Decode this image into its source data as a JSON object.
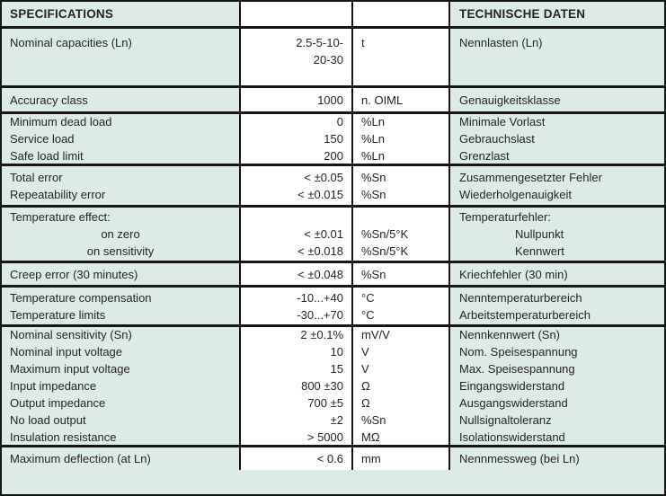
{
  "colors": {
    "row_tint": "#dcebe4",
    "cell_white": "#ffffff",
    "border": "#161616",
    "text": "#242424"
  },
  "table": {
    "header": {
      "left": "SPECIFICATIONS",
      "right": "TECHNISCHE DATEN"
    },
    "sections": [
      {
        "rows": [
          {
            "en": "Nominal capacities (Ln)",
            "value": "2.5-5-10-",
            "unit": "t",
            "de": "Nennlasten (Ln)"
          },
          {
            "en": "",
            "value": "20-30",
            "unit": "",
            "de": ""
          }
        ]
      },
      {
        "rows": [
          {
            "en": "Accuracy class",
            "value": "1000",
            "unit": "n. OIML",
            "de": "Genauigkeitsklasse"
          }
        ]
      },
      {
        "rows": [
          {
            "en": "Minimum dead load",
            "value": "0",
            "unit": "%Ln",
            "de": "Minimale Vorlast"
          },
          {
            "en": "Service load",
            "value": "150",
            "unit": "%Ln",
            "de": "Gebrauchslast"
          },
          {
            "en": "Safe load limit",
            "value": "200",
            "unit": "%Ln",
            "de": "Grenzlast"
          }
        ]
      },
      {
        "rows": [
          {
            "en": "Total error",
            "value": "< ±0.05",
            "unit": "%Sn",
            "de": "Zusammengesetzter Fehler"
          },
          {
            "en": "Repeatability error",
            "value": "< ±0.015",
            "unit": "%Sn",
            "de": "Wiederholgenauigkeit"
          }
        ]
      },
      {
        "rows": [
          {
            "en": "Temperature effect:",
            "value": "",
            "unit": "",
            "de": "Temperaturfehler:"
          },
          {
            "en": "on zero",
            "en_sub": true,
            "value": "< ±0.01",
            "unit": "%Sn/5°K",
            "de": "Nullpunkt",
            "de_sub": true
          },
          {
            "en": "on sensitivity",
            "en_sub": true,
            "value": "< ±0.018",
            "unit": "%Sn/5°K",
            "de": "Kennwert",
            "de_sub": true
          }
        ]
      },
      {
        "rows": [
          {
            "en": "Creep error (30 minutes)",
            "value": "< ±0.048",
            "unit": "%Sn",
            "de": "Kriechfehler (30 min)"
          }
        ]
      },
      {
        "rows": [
          {
            "en": "Temperature compensation",
            "value": "-10...+40",
            "unit": "°C",
            "de": "Nenntemperaturbereich"
          },
          {
            "en": "Temperature limits",
            "value": "-30...+70",
            "unit": "°C",
            "de": "Arbeitstemperaturbereich"
          }
        ]
      },
      {
        "rows": [
          {
            "en": "Nominal sensitivity (Sn)",
            "value": "2 ±0.1%",
            "unit": "mV/V",
            "de": "Nennkennwert (Sn)"
          },
          {
            "en": "Nominal input voltage",
            "value": "10",
            "unit": "V",
            "de": "Nom. Speisespannung"
          },
          {
            "en": "Maximum input voltage",
            "value": "15",
            "unit": "V",
            "de": "Max. Speisespannung"
          },
          {
            "en": "Input impedance",
            "value": "800 ±30",
            "unit": "Ω",
            "de": "Eingangswiderstand"
          },
          {
            "en": "Output impedance",
            "value": "700 ±5",
            "unit": "Ω",
            "de": "Ausgangswiderstand"
          },
          {
            "en": "No load output",
            "value": "±2",
            "unit": "%Sn",
            "de": "Nullsignaltoleranz"
          },
          {
            "en": "Insulation resistance",
            "value": "> 5000",
            "unit": "MΩ",
            "de": "Isolationswiderstand"
          }
        ]
      },
      {
        "rows": [
          {
            "en": "Maximum deflection (at Ln)",
            "value": "< 0.6",
            "unit": "mm",
            "de": "Nennmessweg (bei Ln)"
          }
        ]
      }
    ]
  }
}
